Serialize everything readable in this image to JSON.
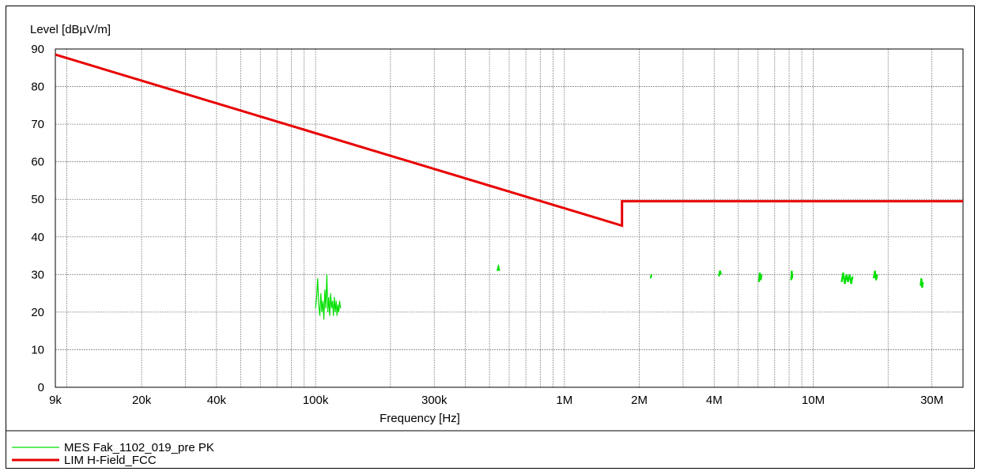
{
  "chart_data": {
    "type": "line",
    "ylabel": "Level [dBµV/m]",
    "xlabel": "Frequency [Hz]",
    "x_scale": "log",
    "xlim": [
      9000,
      40000000
    ],
    "ylim": [
      0,
      90
    ],
    "grid": true,
    "y_ticks": [
      "0",
      "10",
      "20",
      "30",
      "40",
      "50",
      "60",
      "70",
      "80",
      "90"
    ],
    "x_ticks": [
      {
        "label": "9k",
        "value": 9000
      },
      {
        "label": "20k",
        "value": 20000
      },
      {
        "label": "40k",
        "value": 40000
      },
      {
        "label": "100k",
        "value": 100000
      },
      {
        "label": "300k",
        "value": 300000
      },
      {
        "label": "1M",
        "value": 1000000
      },
      {
        "label": "2M",
        "value": 2000000
      },
      {
        "label": "4M",
        "value": 4000000
      },
      {
        "label": "10M",
        "value": 10000000
      },
      {
        "label": "30M",
        "value": 30000000
      }
    ],
    "legend_position": "bottom",
    "series": [
      {
        "name": "MES  Fak_1102_019_pre PK",
        "color": "#00e000",
        "points": [
          [
            100000,
            21
          ],
          [
            101000,
            24
          ],
          [
            102000,
            29
          ],
          [
            103000,
            22
          ],
          [
            104000,
            19
          ],
          [
            105000,
            25
          ],
          [
            106000,
            20
          ],
          [
            107000,
            23
          ],
          [
            108000,
            18
          ],
          [
            109000,
            26
          ],
          [
            110000,
            21
          ],
          [
            111000,
            30
          ],
          [
            112000,
            20
          ],
          [
            113000,
            24
          ],
          [
            114000,
            19
          ],
          [
            115000,
            25
          ],
          [
            116000,
            21
          ],
          [
            117000,
            23
          ],
          [
            118000,
            19
          ],
          [
            119000,
            24
          ],
          [
            120000,
            20
          ],
          [
            121000,
            23
          ],
          [
            122000,
            19
          ],
          [
            123000,
            22
          ],
          [
            124000,
            20
          ],
          [
            125000,
            23
          ],
          [
            126000,
            21
          ]
        ],
        "segments": [
          [
            [
              538000,
              31
            ],
            [
              543000,
              32
            ],
            [
              548000,
              31
            ]
          ],
          [
            [
              2220000,
              29
            ],
            [
              2240000,
              30
            ]
          ],
          [
            [
              4180000,
              29.5
            ],
            [
              4220000,
              31
            ],
            [
              4260000,
              30
            ]
          ],
          [
            [
              6050000,
              28
            ],
            [
              6100000,
              30.5
            ],
            [
              6150000,
              28.5
            ],
            [
              6200000,
              30
            ]
          ],
          [
            [
              8150000,
              28.5
            ],
            [
              8200000,
              31
            ],
            [
              8250000,
              29
            ]
          ],
          [
            [
              13000000,
              28
            ],
            [
              13200000,
              30.5
            ],
            [
              13400000,
              27.5
            ],
            [
              13600000,
              30
            ],
            [
              13800000,
              28
            ],
            [
              14000000,
              30
            ],
            [
              14200000,
              27.5
            ],
            [
              14400000,
              29.5
            ]
          ],
          [
            [
              17500000,
              29
            ],
            [
              17700000,
              31
            ],
            [
              17900000,
              28.5
            ],
            [
              18100000,
              30
            ]
          ],
          [
            [
              27000000,
              27
            ],
            [
              27200000,
              29
            ],
            [
              27400000,
              26.5
            ],
            [
              27600000,
              28
            ]
          ]
        ]
      },
      {
        "name": "LIM  H-Field_FCC",
        "color": "#e80000",
        "points": [
          [
            9000,
            88.5
          ],
          [
            1705000,
            43
          ],
          [
            1705000,
            49.5
          ],
          [
            40000000,
            49.5
          ]
        ]
      }
    ]
  }
}
